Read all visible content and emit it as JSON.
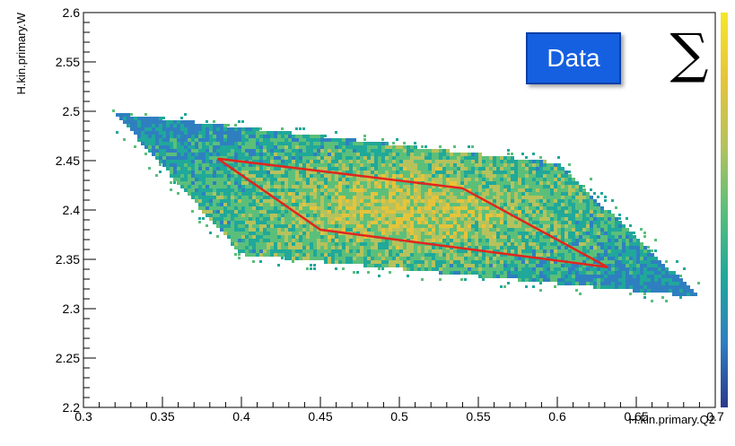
{
  "chart_data": {
    "type": "heatmap",
    "title": "",
    "xlabel": "H.kin.primary.Q2",
    "ylabel": "H.kin.primary.W",
    "xlim": [
      0.3,
      0.7
    ],
    "ylim": [
      2.2,
      2.6
    ],
    "x_ticks": [
      "0.3",
      "0.35",
      "0.4",
      "0.45",
      "0.5",
      "0.55",
      "0.6",
      "0.65",
      "0.7"
    ],
    "y_ticks": [
      "2.2",
      "2.25",
      "2.3",
      "2.35",
      "2.4",
      "2.45",
      "2.5",
      "2.55",
      "2.6"
    ],
    "colormap": [
      "#2a3a8c",
      "#2f7fc0",
      "#20a89a",
      "#5bbf7a",
      "#b6c25c",
      "#e6c43a",
      "#f5e72a"
    ],
    "distribution_polygon": [
      [
        0.32,
        2.498
      ],
      [
        0.6,
        2.448
      ],
      [
        0.69,
        2.312
      ],
      [
        0.4,
        2.355
      ]
    ],
    "cut_polygon": [
      [
        0.385,
        2.452
      ],
      [
        0.54,
        2.422
      ],
      [
        0.632,
        2.342
      ],
      [
        0.45,
        2.38
      ]
    ],
    "cut_color": "#e0261e",
    "legend": {
      "badge": "Data",
      "symbol": "∑"
    }
  }
}
